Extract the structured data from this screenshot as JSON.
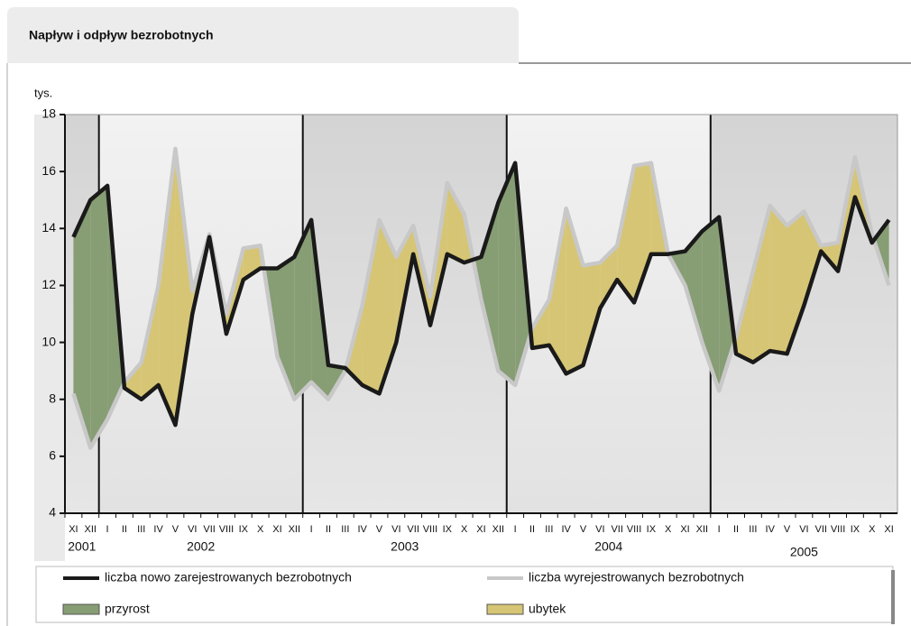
{
  "chart_data": {
    "type": "line",
    "title": "Napływ i odpływ bezrobotnych",
    "y_label": "tys.",
    "categories": [
      "XI",
      "XII",
      "I",
      "II",
      "III",
      "IV",
      "V",
      "VI",
      "VII",
      "VIII",
      "IX",
      "X",
      "XI",
      "XII",
      "I",
      "II",
      "III",
      "IV",
      "V",
      "VI",
      "VII",
      "VIII",
      "IX",
      "X",
      "XI",
      "XII",
      "I",
      "II",
      "III",
      "IV",
      "V",
      "VI",
      "VII",
      "VIII",
      "IX",
      "X",
      "XI",
      "XII",
      "I",
      "II",
      "III",
      "IV",
      "V",
      "VI",
      "VII",
      "VIII",
      "IX",
      "X",
      "XI"
    ],
    "years": [
      "2001",
      "2002",
      "2003",
      "2004",
      "2005"
    ],
    "series": [
      {
        "name": "liczba nowo zarejestrowanych bezrobotnych",
        "color": "#1a1a1a",
        "values": [
          13.7,
          15.0,
          15.5,
          8.4,
          8.0,
          8.5,
          7.1,
          11.0,
          13.7,
          10.3,
          12.2,
          12.6,
          12.6,
          13.0,
          14.3,
          9.2,
          9.1,
          8.5,
          8.2,
          10.0,
          13.1,
          10.6,
          13.1,
          12.8,
          13.0,
          14.9,
          16.3,
          9.8,
          9.9,
          8.9,
          9.2,
          11.2,
          12.2,
          11.4,
          13.1,
          13.1,
          13.2,
          13.9,
          14.4,
          9.6,
          9.3,
          9.7,
          9.6,
          11.3,
          13.2,
          12.5,
          15.1,
          13.5,
          14.3
        ]
      },
      {
        "name": "liczba wyrejestrowanych bezrobotnych",
        "color": "#c8c8c8",
        "values": [
          8.2,
          6.3,
          7.3,
          8.6,
          9.3,
          12.0,
          16.8,
          11.8,
          13.8,
          11.0,
          13.3,
          13.4,
          9.5,
          8.0,
          8.6,
          8.0,
          9.0,
          11.3,
          14.3,
          13.0,
          14.1,
          11.6,
          15.6,
          14.5,
          11.5,
          9.0,
          8.5,
          10.5,
          11.5,
          14.7,
          12.7,
          12.8,
          13.4,
          16.2,
          16.3,
          13.1,
          12.0,
          10.0,
          8.3,
          10.2,
          12.5,
          14.8,
          14.1,
          14.6,
          13.4,
          13.5,
          16.5,
          13.8,
          12.0
        ]
      }
    ],
    "fills": [
      {
        "name": "przyrost",
        "color": "#879d74"
      },
      {
        "name": "ubytek",
        "color": "#d6c574"
      }
    ],
    "ylim": [
      4,
      18
    ],
    "yticks": [
      4,
      6,
      8,
      10,
      12,
      14,
      16,
      18
    ],
    "grid": false
  }
}
